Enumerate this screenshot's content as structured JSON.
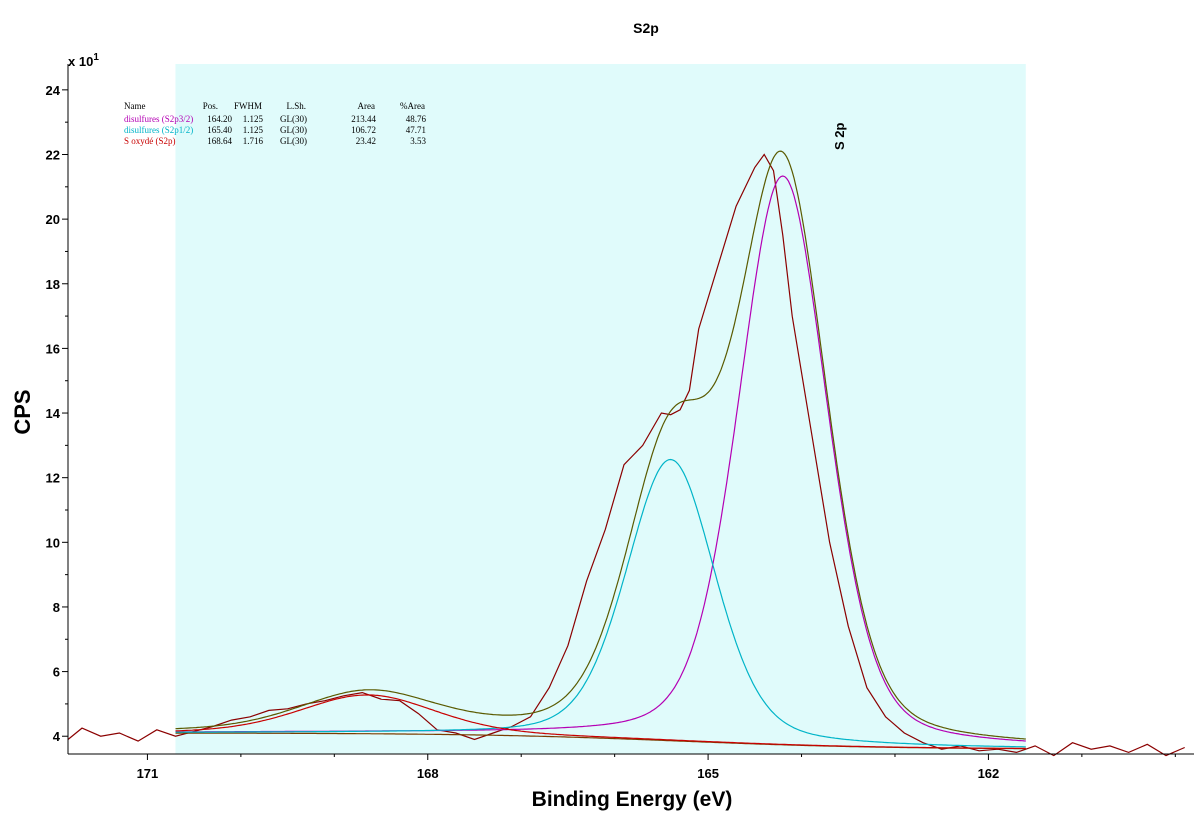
{
  "chart_data": {
    "type": "line",
    "title": "S2p",
    "xlabel": "Binding Energy (eV)",
    "ylabel": "CPS",
    "y_multiplier_label": "x 10",
    "y_multiplier_exponent": "1",
    "x_reversed": true,
    "xlim": [
      171.85,
      159.8
    ],
    "ylim": [
      3.45,
      24.8
    ],
    "x_ticks": [
      171,
      168,
      165,
      162
    ],
    "x_tick_labels": [
      "171",
      "168",
      "165",
      "162"
    ],
    "y_ticks": [
      4,
      6,
      8,
      10,
      12,
      14,
      16,
      18,
      20,
      22,
      24
    ],
    "y_tick_labels": [
      "4",
      "6",
      "8",
      "10",
      "12",
      "14",
      "16",
      "18",
      "20",
      "22",
      "24"
    ],
    "fit_region": [
      170.7,
      161.6
    ],
    "peak_annotation": {
      "text": "S 2p",
      "x": 163.6
    },
    "legend": {
      "headers": [
        "Name",
        "Pos.",
        "FWHM",
        "L.Sh.",
        "Area",
        "%Area"
      ],
      "rows": [
        {
          "name": "disulfures (S2p3/2)",
          "pos": "164.20",
          "fwhm": "1.125",
          "lsh": "GL(30)",
          "area": "213.44",
          "pct": "48.76",
          "color": "#b400b4"
        },
        {
          "name": "disulfures (S2p1/2)",
          "pos": "165.40",
          "fwhm": "1.125",
          "lsh": "GL(30)",
          "area": "106.72",
          "pct": "47.71",
          "color": "#00b4c8"
        },
        {
          "name": "S oxydé (S2p)",
          "pos": "168.64",
          "fwhm": "1.716",
          "lsh": "GL(30)",
          "area": "23.42",
          "pct": "3.53",
          "color": "#c80000"
        }
      ]
    },
    "series": [
      {
        "role": "raw",
        "color": "#8b0000",
        "x": [
          171.85,
          171.7,
          171.5,
          171.3,
          171.1,
          170.9,
          170.7,
          170.5,
          170.3,
          170.1,
          169.9,
          169.7,
          169.5,
          169.3,
          169.1,
          168.9,
          168.7,
          168.5,
          168.3,
          168.1,
          167.9,
          167.7,
          167.5,
          167.3,
          167.1,
          166.9,
          166.7,
          166.5,
          166.3,
          166.1,
          165.9,
          165.7,
          165.5,
          165.4,
          165.3,
          165.2,
          165.1,
          164.9,
          164.7,
          164.5,
          164.4,
          164.3,
          164.2,
          164.1,
          163.9,
          163.7,
          163.5,
          163.3,
          163.1,
          162.9,
          162.7,
          162.5,
          162.3,
          162.1,
          161.9,
          161.7,
          161.5,
          161.3,
          161.1,
          160.9,
          160.7,
          160.5,
          160.3,
          160.1,
          159.9
        ],
        "y": [
          3.9,
          4.25,
          4.0,
          4.1,
          3.85,
          4.2,
          4.0,
          4.15,
          4.3,
          4.5,
          4.6,
          4.8,
          4.85,
          5.0,
          5.1,
          5.25,
          5.35,
          5.15,
          5.1,
          4.7,
          4.2,
          4.1,
          3.9,
          4.1,
          4.3,
          4.6,
          5.5,
          6.8,
          8.8,
          10.4,
          12.4,
          13.0,
          14.0,
          13.95,
          14.1,
          14.7,
          16.6,
          18.5,
          20.4,
          21.6,
          22.0,
          21.5,
          19.5,
          17.0,
          13.5,
          10.0,
          7.4,
          5.5,
          4.6,
          4.1,
          3.8,
          3.6,
          3.7,
          3.55,
          3.6,
          3.5,
          3.7,
          3.4,
          3.8,
          3.6,
          3.7,
          3.5,
          3.75,
          3.4,
          3.65
        ]
      },
      {
        "role": "component",
        "name": "disulfures (S2p3/2)",
        "color": "#b400b4",
        "center": 164.2,
        "fwhm": 1.125,
        "height": 17.6
      },
      {
        "role": "component",
        "name": "disulfures (S2p1/2)",
        "color": "#00b4c8",
        "center": 165.4,
        "fwhm": 1.125,
        "height": 8.7
      },
      {
        "role": "component",
        "name": "S oxydé (S2p)",
        "color": "#c80000",
        "center": 168.64,
        "fwhm": 1.716,
        "height": 1.2
      },
      {
        "role": "background",
        "color": "#7a3c00",
        "y_high": 4.1,
        "y_low": 3.6,
        "center": 165.3,
        "width": 1.1
      },
      {
        "role": "envelope",
        "color": "#5a5a00"
      }
    ]
  }
}
